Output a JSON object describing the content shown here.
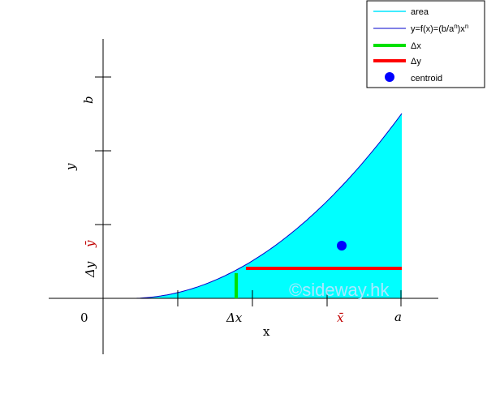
{
  "diagram": {
    "legend": {
      "items": [
        {
          "label": "area",
          "color": "#00e5ff",
          "style": "thin-line"
        },
        {
          "label": "y=f(x)=(b/a",
          "sup1": "n",
          "mid": ")x",
          "sup2": "n",
          "color": "#0000cc",
          "style": "thin-line"
        },
        {
          "label": "Δx",
          "color": "#00e000",
          "style": "thick-line"
        },
        {
          "label": "Δy",
          "color": "#ff0000",
          "style": "thick-line"
        },
        {
          "label": "centroid",
          "color": "#0000ff",
          "style": "dot"
        }
      ]
    },
    "labels": {
      "x_axis": "x",
      "y_axis": "y",
      "origin": "0",
      "a": "a",
      "b": "b",
      "delta_x": "Δx",
      "delta_y": "Δy",
      "x_bar": "x̄",
      "y_bar": "ȳ"
    },
    "watermark": "©sideway.hk",
    "colors": {
      "area_fill": "#00ffff",
      "curve": "#0000cc",
      "delta_x": "#00e000",
      "delta_y": "#ff0000",
      "centroid": "#0000ff",
      "centroid_label": "#c00000"
    }
  }
}
